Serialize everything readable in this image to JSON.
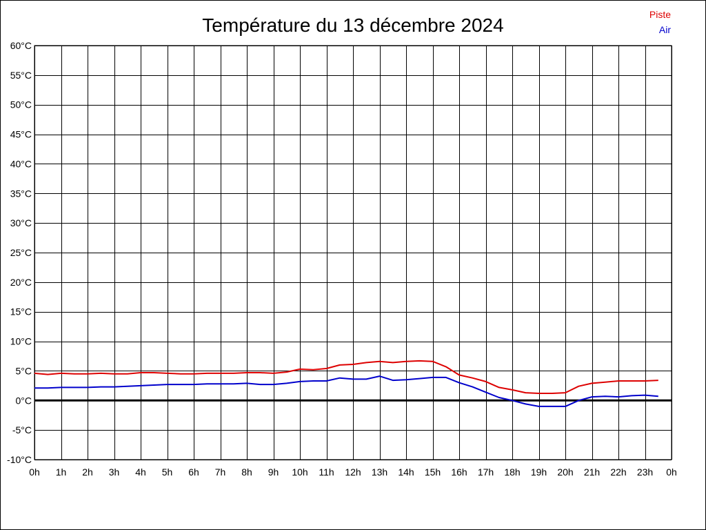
{
  "chart_data": {
    "type": "line",
    "title": "Température du 13 décembre 2024",
    "x_tick_labels": [
      "0h",
      "1h",
      "2h",
      "3h",
      "4h",
      "5h",
      "6h",
      "7h",
      "8h",
      "9h",
      "10h",
      "11h",
      "12h",
      "13h",
      "14h",
      "15h",
      "16h",
      "17h",
      "18h",
      "19h",
      "20h",
      "21h",
      "22h",
      "23h",
      "0h"
    ],
    "y_tick_labels": [
      "60°C",
      "55°C",
      "50°C",
      "45°C",
      "40°C",
      "35°C",
      "30°C",
      "25°C",
      "20°C",
      "15°C",
      "10°C",
      "5°C",
      "0°C",
      "-5°C",
      "-10°C"
    ],
    "xlim": [
      0,
      24
    ],
    "ylim": [
      -10,
      60
    ],
    "grid": true,
    "legend_position": "top-right",
    "x": [
      0,
      0.5,
      1,
      1.5,
      2,
      2.5,
      3,
      3.5,
      4,
      4.5,
      5,
      5.5,
      6,
      6.5,
      7,
      7.5,
      8,
      8.5,
      9,
      9.5,
      10,
      10.5,
      11,
      11.5,
      12,
      12.5,
      13,
      13.5,
      14,
      14.5,
      15,
      15.5,
      16,
      16.5,
      17,
      17.5,
      18,
      18.5,
      19,
      19.5,
      20,
      20.5,
      21,
      21.5,
      22,
      22.5,
      23,
      23.5
    ],
    "series": [
      {
        "name": "Piste",
        "color": "#dd0000",
        "values": [
          4.6,
          4.4,
          4.6,
          4.5,
          4.5,
          4.6,
          4.5,
          4.5,
          4.7,
          4.7,
          4.6,
          4.5,
          4.5,
          4.6,
          4.6,
          4.6,
          4.7,
          4.7,
          4.6,
          4.8,
          5.3,
          5.2,
          5.4,
          6.0,
          6.1,
          6.4,
          6.6,
          6.4,
          6.6,
          6.7,
          6.6,
          5.7,
          4.3,
          3.8,
          3.2,
          2.2,
          1.8,
          1.3,
          1.2,
          1.2,
          1.3,
          2.4,
          2.9,
          3.1,
          3.3,
          3.3,
          3.3,
          3.4
        ]
      },
      {
        "name": "Air",
        "color": "#0000cc",
        "values": [
          2.1,
          2.1,
          2.2,
          2.2,
          2.2,
          2.3,
          2.3,
          2.4,
          2.5,
          2.6,
          2.7,
          2.7,
          2.7,
          2.8,
          2.8,
          2.8,
          2.9,
          2.7,
          2.7,
          2.9,
          3.2,
          3.3,
          3.3,
          3.8,
          3.6,
          3.6,
          4.1,
          3.4,
          3.5,
          3.7,
          3.9,
          3.9,
          3.0,
          2.3,
          1.4,
          0.5,
          0.0,
          -0.6,
          -1.0,
          -1.0,
          -1.0,
          0.0,
          0.6,
          0.7,
          0.6,
          0.8,
          0.9,
          0.7
        ]
      }
    ]
  }
}
